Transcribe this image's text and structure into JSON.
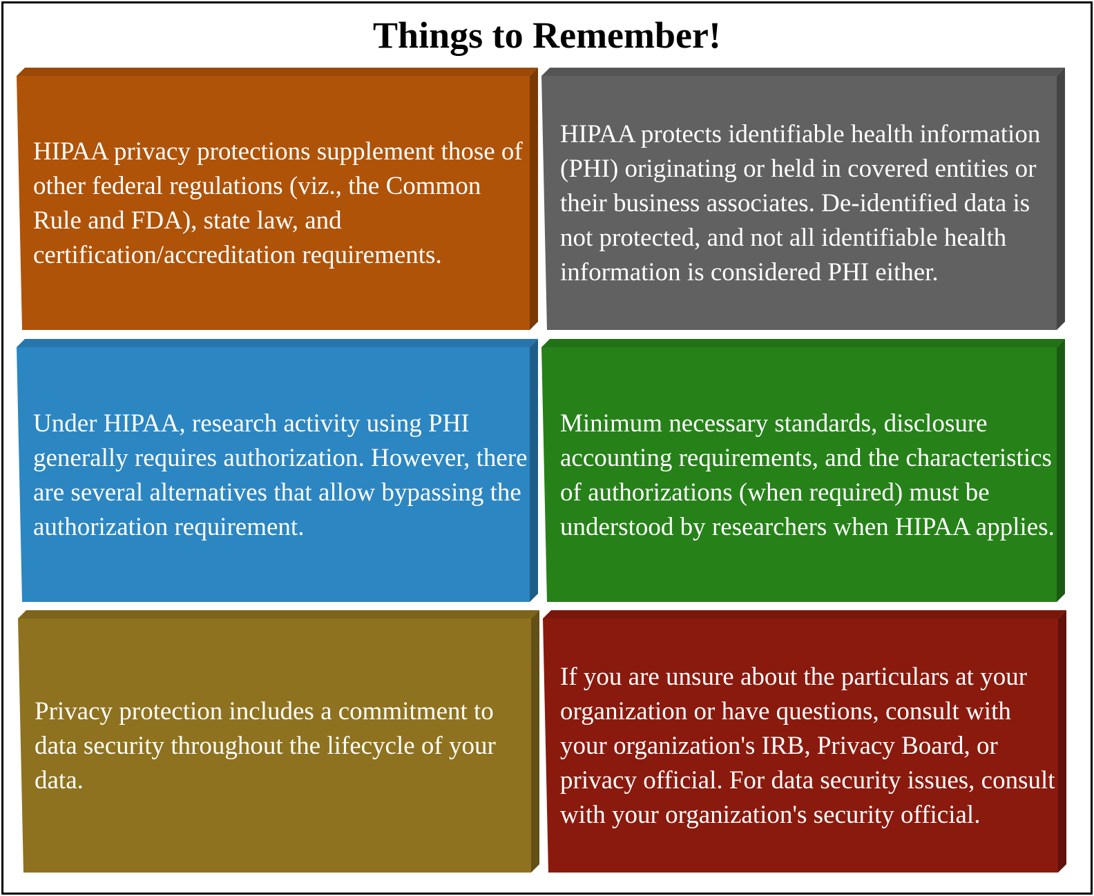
{
  "title": "Things to Remember!",
  "colors": {
    "orange": "#AF5309",
    "gray": "#616161",
    "blue": "#2C86C2",
    "green": "#268119",
    "olive": "#8E721F",
    "red": "#8A1A0E"
  },
  "tiles": [
    {
      "color_key": "orange",
      "text": "HIPAA privacy protections supplement those of other federal regulations (viz., the Common Rule and FDA), state law, and certification/accreditation requirements."
    },
    {
      "color_key": "gray",
      "text": "HIPAA protects identifiable health information (PHI) originating or held in covered entities or their business associates. De-identified data is not protected, and not all identifiable health information is considered PHI either."
    },
    {
      "color_key": "blue",
      "text": "Under HIPAA, research activity using PHI generally requires authorization. However, there are several alternatives that allow bypassing the authorization requirement."
    },
    {
      "color_key": "green",
      "text": "Minimum necessary standards, disclosure accounting requirements, and the characteristics of authorizations (when required) must be understood by researchers when HIPAA applies."
    },
    {
      "color_key": "olive",
      "text": "Privacy protection includes a commitment to data security throughout the lifecycle of your data."
    },
    {
      "color_key": "red",
      "text": "If you are unsure about the particulars at your organization or have questions, consult with your organization's IRB, Privacy Board, or privacy official. For data security issues, consult with your organization's security official."
    }
  ]
}
